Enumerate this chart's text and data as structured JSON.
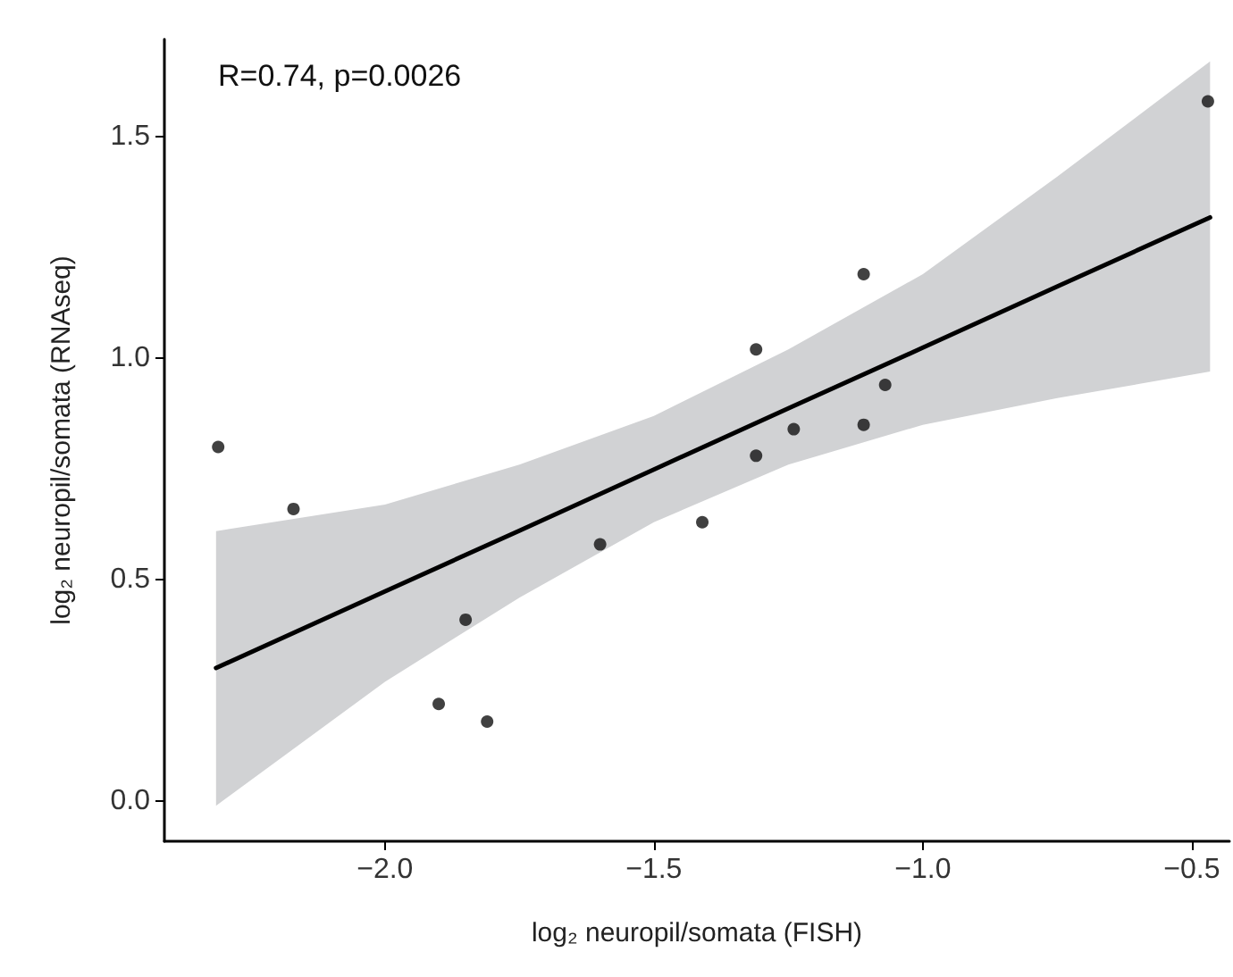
{
  "chart_data": {
    "type": "scatter",
    "xlabel": "log₂ neuropil/somata (FISH)",
    "ylabel": "log₂ neuropil/somata (RNAseq)",
    "annotations": [
      "R=0.74, p=0.0026"
    ],
    "x": [
      -2.31,
      -2.17,
      -1.85,
      -1.9,
      -1.81,
      -1.6,
      -1.41,
      -1.31,
      -1.31,
      -1.24,
      -1.11,
      -1.07,
      -1.11,
      -0.47
    ],
    "series": [
      {
        "color": "#111111",
        "values": [
          0.8,
          0.66,
          0.41,
          0.22,
          0.18,
          0.58,
          0.63,
          0.78,
          1.02,
          0.84,
          0.85,
          0.94,
          1.19,
          1.58
        ]
      },
      {
        "type": "line",
        "marker": "none",
        "color": "#000000",
        "x": [
          -2.314,
          -2.0,
          -1.75,
          -1.5,
          -1.25,
          -1.0,
          -0.75,
          -0.466
        ],
        "values": [
          0.301,
          0.474,
          0.611,
          0.749,
          0.887,
          1.024,
          1.162,
          1.318
        ],
        "upper": [
          0.61,
          0.67,
          0.76,
          0.87,
          1.02,
          1.19,
          1.41,
          1.67
        ],
        "lower": [
          -0.01,
          0.27,
          0.46,
          0.63,
          0.76,
          0.85,
          0.91,
          0.97
        ]
      }
    ],
    "xlim": [
      -2.41,
      -0.43
    ],
    "xticks": [
      {
        "value": -2.0,
        "label": "−2.0"
      },
      {
        "value": -1.5,
        "label": "−1.5"
      },
      {
        "value": -1.0,
        "label": "−1.0"
      },
      {
        "value": -0.5,
        "label": "−0.5"
      }
    ],
    "ylim": [
      -0.09,
      1.72
    ],
    "yticks": [
      {
        "value": 0,
        "label": "0.0"
      },
      {
        "value": 0.5,
        "label": "0.5"
      },
      {
        "value": 1,
        "label": "1.0"
      },
      {
        "value": 1.5,
        "label": "1.5"
      }
    ],
    "grid": false,
    "marker": "circle",
    "line_style": "solid"
  }
}
